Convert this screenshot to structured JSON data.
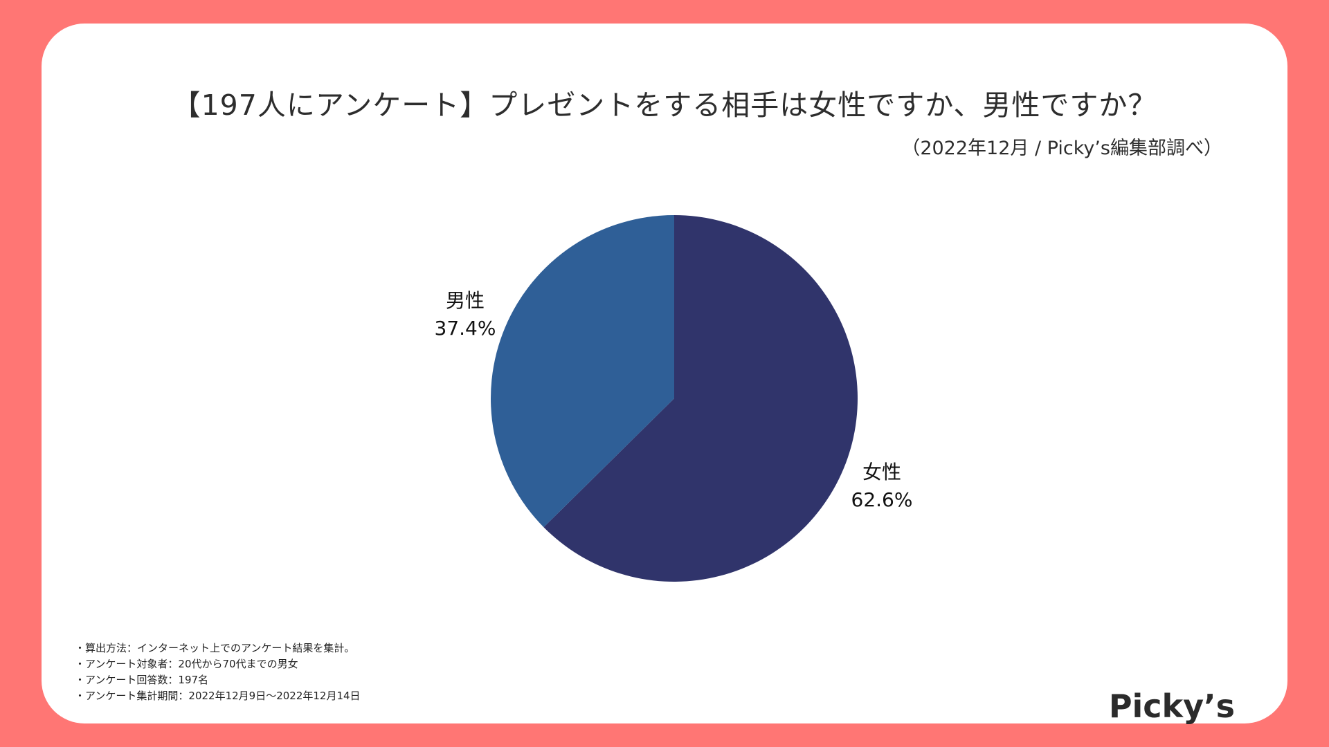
{
  "title": "【197人にアンケート】プレゼントをする相手は女性ですか、男性ですか？",
  "source": "（2022年12月 / Picky’s編集部調べ）",
  "notes": [
    "・算出方法：インターネット上でのアンケート結果を集計。",
    "・アンケート対象者：20代から70代までの男女",
    "・アンケート回答数：197名",
    "・アンケート集計期間：2022年12月9日〜2022年12月14日"
  ],
  "logo": "Picky’s",
  "colors": {
    "background": "#ff7674",
    "card": "#ffffff"
  },
  "chart_data": {
    "type": "pie",
    "title": "【197人にアンケート】プレゼントをする相手は女性ですか、男性ですか？",
    "slices": [
      {
        "label": "女性",
        "value": 62.6,
        "value_label": "62.6%",
        "color": "#30346b"
      },
      {
        "label": "男性",
        "value": 37.4,
        "value_label": "37.4%",
        "color": "#2f5f97"
      }
    ],
    "start": "12 o'clock",
    "direction": "clockwise"
  }
}
